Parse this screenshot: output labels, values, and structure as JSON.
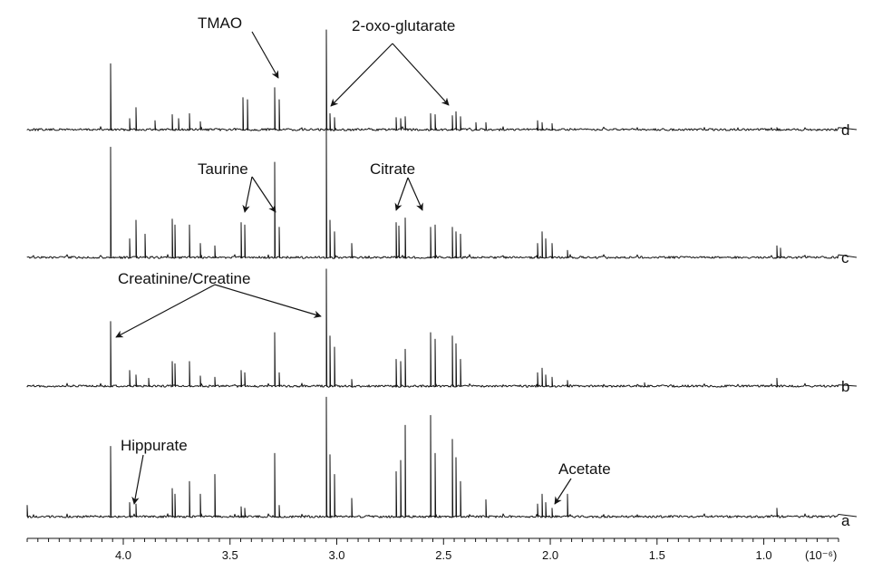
{
  "chart_data": {
    "type": "line",
    "title": "",
    "xlabel": "",
    "x_unit": "(10⁻⁶)",
    "x_range": [
      4.45,
      0.65
    ],
    "x_direction": "reversed",
    "major_ticks": [
      4.0,
      3.5,
      3.0,
      2.5,
      2.0,
      1.5,
      1.0
    ],
    "tick_labels": [
      "4.0",
      "3.5",
      "3.0",
      "2.5",
      "2.0",
      "1.5",
      "1.0"
    ],
    "grid": false,
    "series": [
      {
        "name": "d",
        "peaks": [
          [
            4.06,
            0.66
          ],
          [
            3.97,
            0.11
          ],
          [
            3.94,
            0.22
          ],
          [
            3.85,
            0.09
          ],
          [
            3.77,
            0.15
          ],
          [
            3.74,
            0.11
          ],
          [
            3.69,
            0.16
          ],
          [
            3.64,
            0.08
          ],
          [
            3.44,
            0.32
          ],
          [
            3.42,
            0.3
          ],
          [
            3.29,
            0.42
          ],
          [
            3.27,
            0.3
          ],
          [
            3.05,
            1.0
          ],
          [
            3.03,
            0.16
          ],
          [
            3.01,
            0.12
          ],
          [
            2.72,
            0.12
          ],
          [
            2.7,
            0.11
          ],
          [
            2.68,
            0.13
          ],
          [
            2.56,
            0.16
          ],
          [
            2.54,
            0.15
          ],
          [
            2.46,
            0.14
          ],
          [
            2.44,
            0.18
          ],
          [
            2.42,
            0.13
          ],
          [
            2.35,
            0.07
          ],
          [
            2.3,
            0.07
          ],
          [
            2.06,
            0.09
          ],
          [
            2.04,
            0.07
          ],
          [
            1.99,
            0.06
          ],
          [
            0.94,
            0.02
          ]
        ]
      },
      {
        "name": "c",
        "peaks": [
          [
            4.06,
            0.95
          ],
          [
            3.97,
            0.16
          ],
          [
            3.94,
            0.32
          ],
          [
            3.9,
            0.2
          ],
          [
            3.77,
            0.33
          ],
          [
            3.76,
            0.28
          ],
          [
            3.69,
            0.28
          ],
          [
            3.64,
            0.12
          ],
          [
            3.57,
            0.1
          ],
          [
            3.45,
            0.3
          ],
          [
            3.43,
            0.28
          ],
          [
            3.29,
            0.82
          ],
          [
            3.27,
            0.26
          ],
          [
            3.05,
            1.1
          ],
          [
            3.03,
            0.32
          ],
          [
            3.01,
            0.22
          ],
          [
            2.93,
            0.12
          ],
          [
            2.72,
            0.3
          ],
          [
            2.71,
            0.27
          ],
          [
            2.68,
            0.34
          ],
          [
            2.56,
            0.26
          ],
          [
            2.54,
            0.28
          ],
          [
            2.46,
            0.26
          ],
          [
            2.44,
            0.22
          ],
          [
            2.42,
            0.2
          ],
          [
            2.06,
            0.12
          ],
          [
            2.04,
            0.22
          ],
          [
            2.02,
            0.16
          ],
          [
            1.99,
            0.12
          ],
          [
            1.92,
            0.06
          ],
          [
            0.94,
            0.1
          ],
          [
            0.92,
            0.08
          ]
        ]
      },
      {
        "name": "b",
        "peaks": [
          [
            4.06,
            0.58
          ],
          [
            3.97,
            0.14
          ],
          [
            3.94,
            0.1
          ],
          [
            3.88,
            0.07
          ],
          [
            3.77,
            0.22
          ],
          [
            3.76,
            0.2
          ],
          [
            3.69,
            0.22
          ],
          [
            3.64,
            0.09
          ],
          [
            3.57,
            0.08
          ],
          [
            3.45,
            0.14
          ],
          [
            3.43,
            0.12
          ],
          [
            3.29,
            0.48
          ],
          [
            3.27,
            0.12
          ],
          [
            3.05,
            1.05
          ],
          [
            3.03,
            0.45
          ],
          [
            3.01,
            0.35
          ],
          [
            2.93,
            0.06
          ],
          [
            2.72,
            0.24
          ],
          [
            2.7,
            0.22
          ],
          [
            2.68,
            0.33
          ],
          [
            2.56,
            0.48
          ],
          [
            2.54,
            0.42
          ],
          [
            2.46,
            0.45
          ],
          [
            2.44,
            0.38
          ],
          [
            2.42,
            0.24
          ],
          [
            2.06,
            0.12
          ],
          [
            2.04,
            0.16
          ],
          [
            2.02,
            0.1
          ],
          [
            1.99,
            0.08
          ],
          [
            1.92,
            0.05
          ],
          [
            1.56,
            0.03
          ],
          [
            0.94,
            0.07
          ]
        ]
      },
      {
        "name": "a",
        "peaks": [
          [
            4.45,
            0.08
          ],
          [
            4.06,
            0.5
          ],
          [
            3.97,
            0.1
          ],
          [
            3.94,
            0.09
          ],
          [
            3.77,
            0.2
          ],
          [
            3.76,
            0.16
          ],
          [
            3.69,
            0.25
          ],
          [
            3.64,
            0.16
          ],
          [
            3.57,
            0.3
          ],
          [
            3.45,
            0.07
          ],
          [
            3.43,
            0.06
          ],
          [
            3.29,
            0.45
          ],
          [
            3.27,
            0.08
          ],
          [
            3.05,
            0.85
          ],
          [
            3.03,
            0.44
          ],
          [
            3.01,
            0.3
          ],
          [
            2.93,
            0.13
          ],
          [
            2.72,
            0.32
          ],
          [
            2.7,
            0.4
          ],
          [
            2.68,
            0.65
          ],
          [
            2.56,
            0.72
          ],
          [
            2.54,
            0.45
          ],
          [
            2.46,
            0.55
          ],
          [
            2.44,
            0.42
          ],
          [
            2.42,
            0.25
          ],
          [
            2.3,
            0.12
          ],
          [
            2.06,
            0.09
          ],
          [
            2.04,
            0.16
          ],
          [
            2.02,
            0.1
          ],
          [
            1.99,
            0.06
          ],
          [
            1.92,
            0.16
          ],
          [
            0.94,
            0.06
          ]
        ]
      }
    ],
    "trace_labels": [
      "d",
      "c",
      "b",
      "a"
    ],
    "annotations": [
      {
        "text": "TMAO"
      },
      {
        "text": "2-oxo-glutarate"
      },
      {
        "text": "Taurine"
      },
      {
        "text": "Citrate"
      },
      {
        "text": "Creatinine/Creatine"
      },
      {
        "text": "Hippurate"
      },
      {
        "text": "Acetate"
      }
    ]
  }
}
